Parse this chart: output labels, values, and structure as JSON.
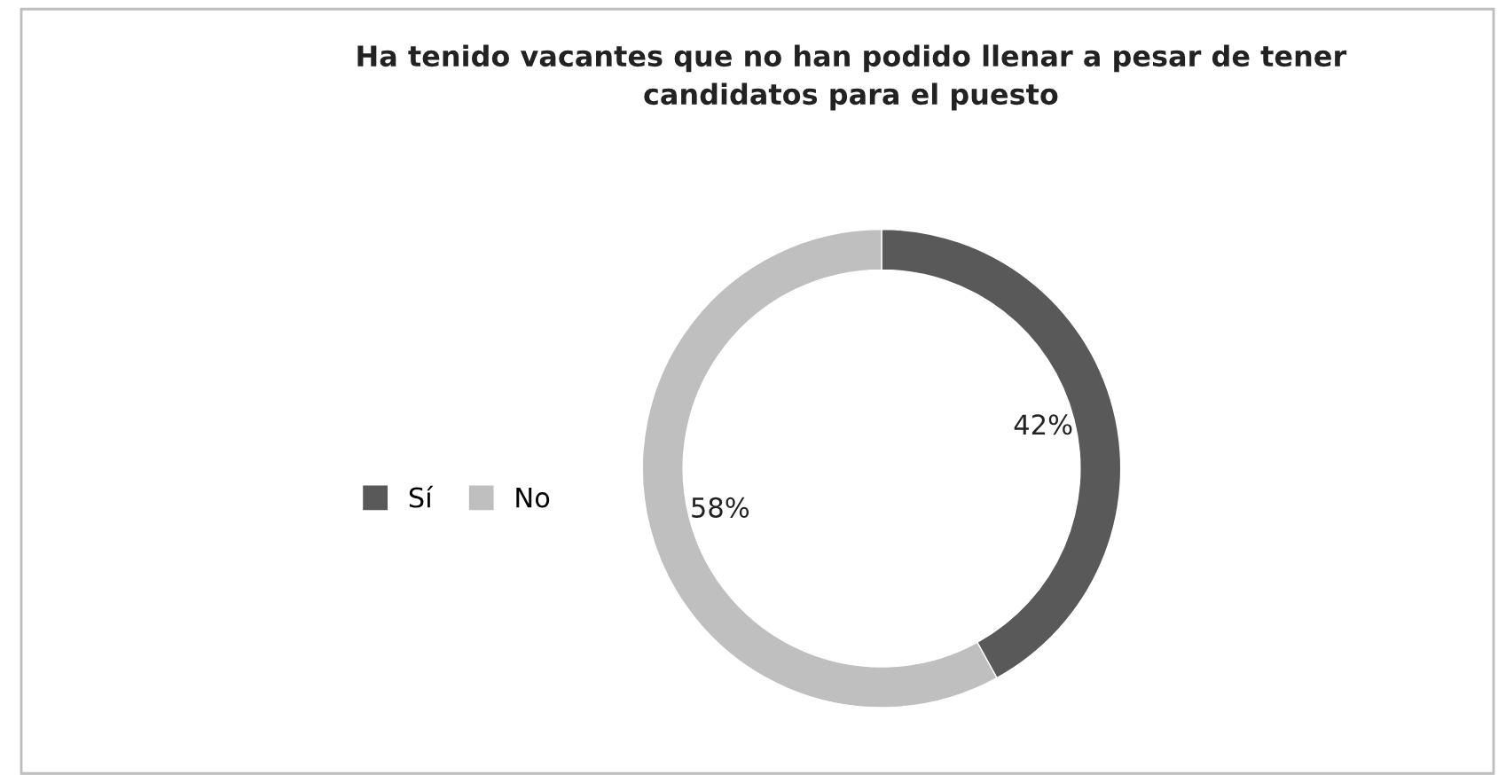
{
  "chart_data": {
    "type": "donut",
    "title": "Ha tenido vacantes que no han podido llenar a pesar de tener\ncandidatos para el puesto",
    "categories": [
      "Sí",
      "No"
    ],
    "values": [
      42,
      58
    ],
    "colors": [
      "#595959",
      "#bfbfbf"
    ],
    "value_labels": [
      "42%",
      "58%"
    ],
    "legend": "left"
  }
}
